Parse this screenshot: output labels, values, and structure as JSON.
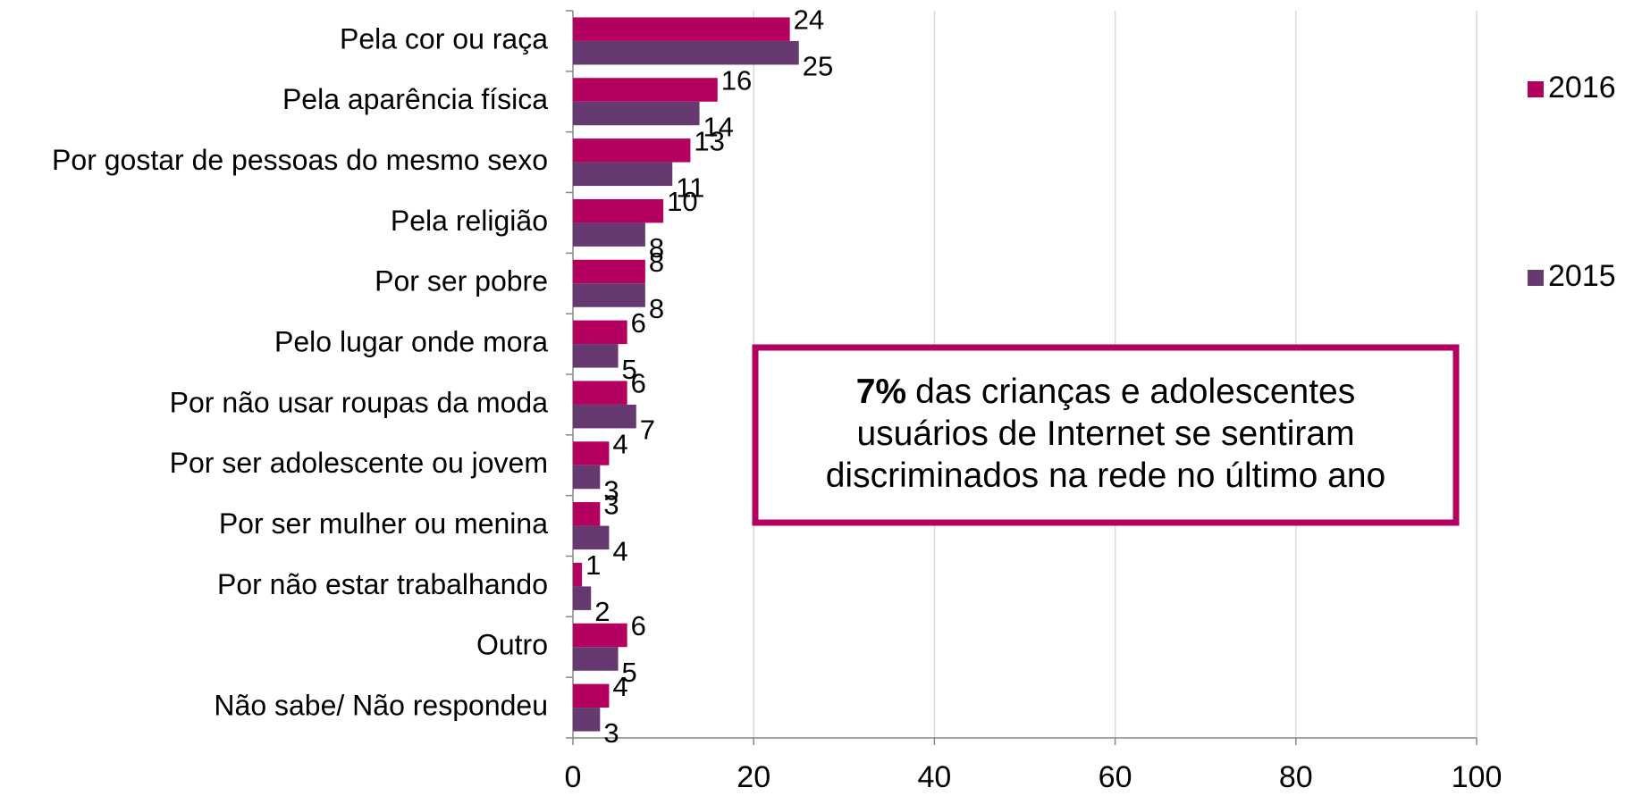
{
  "chart_data": {
    "type": "bar",
    "orientation": "horizontal",
    "categories": [
      "Pela cor ou raça",
      "Pela aparência física",
      "Por gostar de pessoas do mesmo sexo",
      "Pela religião",
      "Por ser pobre",
      "Pelo lugar onde mora",
      "Por não usar roupas da moda",
      "Por ser adolescente ou jovem",
      "Por ser mulher ou menina",
      "Por não estar trabalhando",
      "Outro",
      "Não sabe/ Não respondeu"
    ],
    "series": [
      {
        "name": "2016",
        "color": "#b4005f",
        "values": [
          24,
          16,
          13,
          10,
          8,
          6,
          6,
          4,
          3,
          1,
          6,
          4
        ]
      },
      {
        "name": "2015",
        "color": "#663a70",
        "values": [
          25,
          14,
          11,
          8,
          8,
          5,
          7,
          3,
          4,
          2,
          5,
          3
        ]
      }
    ],
    "xlim": [
      0,
      100
    ],
    "xticks": [
      0,
      20,
      40,
      60,
      80,
      100
    ],
    "grid": true,
    "legend": "right",
    "annotation": {
      "bold": "7%",
      "lines": [
        "das crianças e adolescentes",
        "usuários de Internet se sentiram",
        "discriminados na rede no último ano"
      ]
    }
  }
}
